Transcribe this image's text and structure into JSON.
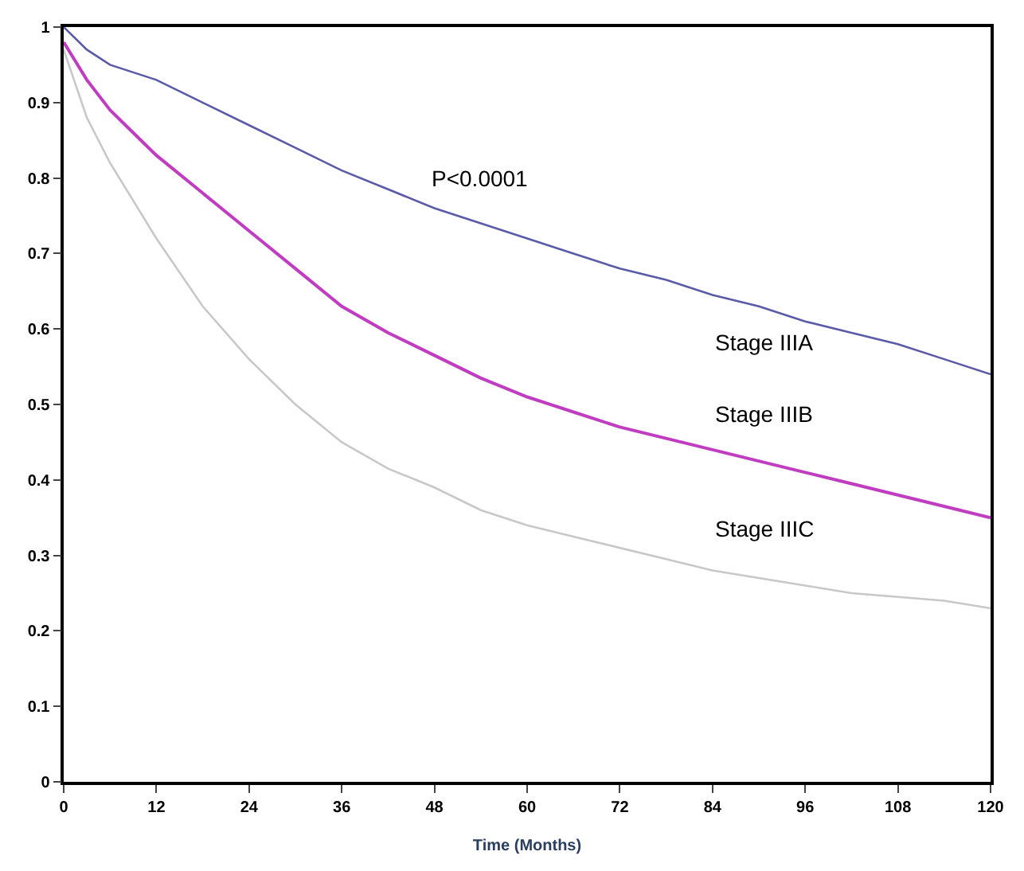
{
  "chart_data": {
    "type": "line",
    "xlabel": "Time (Months)",
    "x": [
      0,
      3,
      6,
      9,
      12,
      18,
      24,
      30,
      36,
      42,
      48,
      54,
      60,
      66,
      72,
      78,
      84,
      90,
      96,
      102,
      108,
      114,
      120
    ],
    "series": [
      {
        "name": "Stage IIIA",
        "color": "#5a5aa8",
        "values": [
          1.0,
          0.97,
          0.95,
          0.94,
          0.93,
          0.9,
          0.87,
          0.84,
          0.81,
          0.785,
          0.76,
          0.74,
          0.72,
          0.7,
          0.68,
          0.665,
          0.645,
          0.63,
          0.61,
          0.595,
          0.58,
          0.56,
          0.54
        ]
      },
      {
        "name": "Stage IIIB",
        "color": "#c03cc0",
        "values": [
          0.98,
          0.93,
          0.89,
          0.86,
          0.83,
          0.78,
          0.73,
          0.68,
          0.63,
          0.595,
          0.565,
          0.535,
          0.51,
          0.49,
          0.47,
          0.455,
          0.44,
          0.425,
          0.41,
          0.395,
          0.38,
          0.365,
          0.35
        ]
      },
      {
        "name": "Stage IIIC",
        "color": "#c8c8c8",
        "values": [
          0.97,
          0.88,
          0.82,
          0.77,
          0.72,
          0.63,
          0.56,
          0.5,
          0.45,
          0.415,
          0.39,
          0.36,
          0.34,
          0.325,
          0.31,
          0.295,
          0.28,
          0.27,
          0.26,
          0.25,
          0.245,
          0.24,
          0.23
        ]
      }
    ],
    "xlim": [
      0,
      120
    ],
    "xticks": [
      0,
      12,
      24,
      36,
      48,
      60,
      72,
      84,
      96,
      108,
      120
    ],
    "ylim": [
      0,
      1
    ],
    "yticks": [
      0,
      0.1,
      0.2,
      0.3,
      0.4,
      0.5,
      0.6,
      0.7,
      0.8,
      0.9,
      1
    ],
    "annotations": [
      "P<0.0001"
    ],
    "legend": false,
    "marker": "none",
    "line_style": "solid"
  }
}
